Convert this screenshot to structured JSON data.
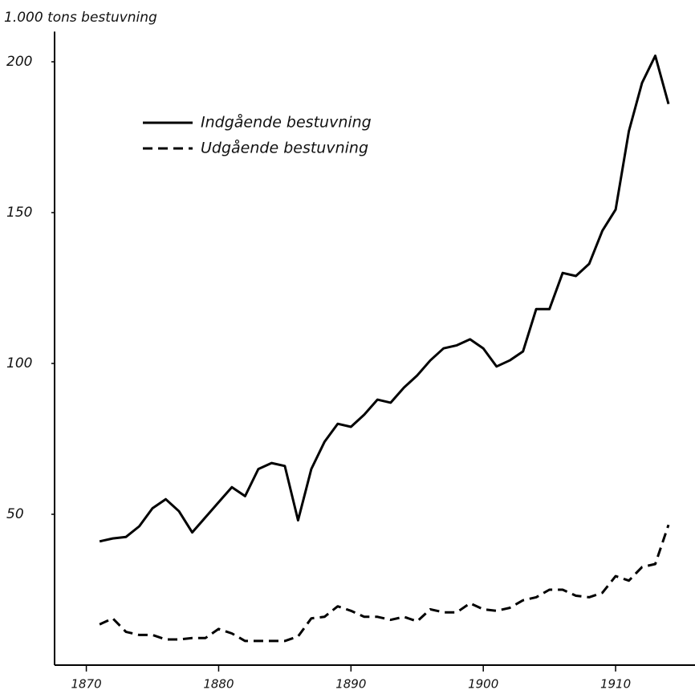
{
  "chart_data": {
    "type": "line",
    "title": "1.000 tons bestuvning",
    "x": [
      1871,
      1872,
      1873,
      1874,
      1875,
      1876,
      1877,
      1878,
      1879,
      1880,
      1881,
      1882,
      1883,
      1884,
      1885,
      1886,
      1887,
      1888,
      1889,
      1890,
      1891,
      1892,
      1893,
      1894,
      1895,
      1896,
      1897,
      1898,
      1899,
      1900,
      1901,
      1902,
      1903,
      1904,
      1905,
      1906,
      1907,
      1908,
      1909,
      1910,
      1911,
      1912,
      1913,
      1914
    ],
    "series": [
      {
        "name": "Indgående bestuvning",
        "color": "#000000",
        "dash": "solid",
        "values": [
          41,
          42,
          42.5,
          46,
          52,
          55,
          51,
          44,
          49,
          54,
          59,
          56,
          65,
          67,
          66,
          48,
          65,
          74,
          80,
          79,
          83,
          88,
          87,
          92,
          96,
          101,
          105,
          106,
          108,
          105,
          99,
          101,
          104,
          118,
          118,
          130,
          129,
          133,
          144,
          151,
          177,
          193,
          202,
          186
        ]
      },
      {
        "name": "Udgående bestuvning",
        "color": "#000000",
        "dash": "dashed",
        "values": [
          13.5,
          15.5,
          11,
          10,
          10,
          8.5,
          8.5,
          9,
          9,
          12,
          10.5,
          8,
          8,
          8,
          8,
          9.5,
          15.5,
          16,
          19.5,
          18,
          16,
          16,
          15,
          16,
          14.5,
          18.5,
          17.5,
          17.5,
          20.5,
          18.5,
          18,
          19,
          21.5,
          22.5,
          25,
          25,
          23,
          22.5,
          24,
          29.5,
          28,
          32.5,
          33.5,
          46.5
        ]
      }
    ],
    "xlim": [
      1867.6,
      1916
    ],
    "ylim": [
      0,
      210
    ],
    "xticks": [
      1870,
      1880,
      1890,
      1900,
      1910
    ],
    "yticks": [
      50,
      100,
      150,
      200
    ],
    "grid": false
  }
}
